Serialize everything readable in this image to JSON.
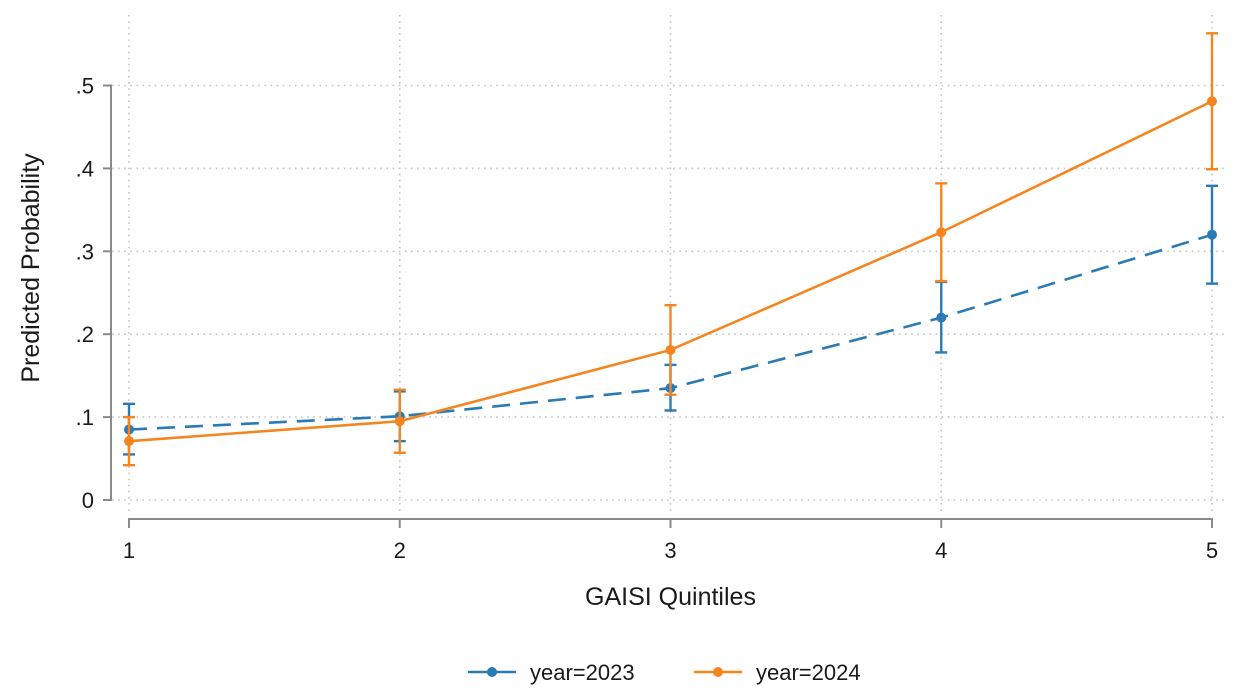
{
  "chart_data": {
    "type": "line",
    "xlabel": "GAISI Quintiles",
    "ylabel": "Predicted Probability",
    "x": [
      1,
      2,
      3,
      4,
      5
    ],
    "xticks": [
      "1",
      "2",
      "3",
      "4",
      "5"
    ],
    "yticks": [
      {
        "value": 0,
        "label": "0"
      },
      {
        "value": 0.1,
        "label": ".1"
      },
      {
        "value": 0.2,
        "label": ".2"
      },
      {
        "value": 0.3,
        "label": ".3"
      },
      {
        "value": 0.4,
        "label": ".4"
      },
      {
        "value": 0.5,
        "label": ".5"
      }
    ],
    "ylim": [
      0,
      0.5
    ],
    "grid": true,
    "legend_position": "bottom",
    "series": [
      {
        "name": "year=2023",
        "color": "#2a7ab5",
        "line_style": "dashed",
        "values": [
          0.085,
          0.101,
          0.135,
          0.22,
          0.32
        ],
        "ci_lower": [
          0.055,
          0.071,
          0.108,
          0.178,
          0.261
        ],
        "ci_upper": [
          0.116,
          0.131,
          0.163,
          0.263,
          0.379
        ]
      },
      {
        "name": "year=2024",
        "color": "#f5861f",
        "line_style": "solid",
        "values": [
          0.071,
          0.095,
          0.181,
          0.323,
          0.481
        ],
        "ci_lower": [
          0.042,
          0.057,
          0.127,
          0.264,
          0.399
        ],
        "ci_upper": [
          0.1,
          0.133,
          0.235,
          0.382,
          0.563
        ]
      }
    ]
  }
}
